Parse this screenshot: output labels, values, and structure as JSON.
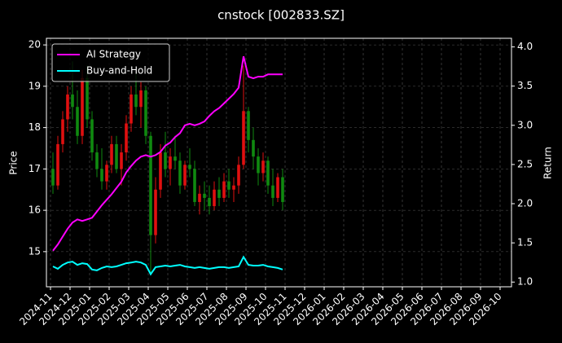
{
  "chart_data": {
    "type": "candlestick",
    "title": "cnstock [002833.SZ]",
    "ylabel": "Price",
    "y2label": "Return",
    "x": [
      "2024-11",
      "2024-11",
      "2024-11",
      "2024-11",
      "2024-12",
      "2024-12",
      "2024-12",
      "2024-12",
      "2025-01",
      "2025-01",
      "2025-01",
      "2025-01",
      "2025-02",
      "2025-02",
      "2025-02",
      "2025-02",
      "2025-03",
      "2025-03",
      "2025-03",
      "2025-03",
      "2025-04",
      "2025-04",
      "2025-04",
      "2025-04",
      "2025-05",
      "2025-05",
      "2025-05",
      "2025-05",
      "2025-06",
      "2025-06",
      "2025-06",
      "2025-06",
      "2025-07",
      "2025-07",
      "2025-07",
      "2025-07",
      "2025-08",
      "2025-08",
      "2025-08",
      "2025-08",
      "2025-09",
      "2025-09",
      "2025-09",
      "2025-09",
      "2025-10",
      "2025-10",
      "2025-10",
      "2025-10"
    ],
    "open": [
      17.0,
      16.6,
      17.6,
      18.2,
      18.8,
      18.5,
      17.8,
      19.2,
      18.2,
      17.4,
      17.0,
      16.7,
      17.1,
      17.6,
      17.0,
      17.4,
      18.1,
      18.8,
      18.5,
      18.9,
      17.8,
      15.4,
      16.5,
      17.4,
      17.0,
      17.3,
      17.2,
      16.6,
      17.1,
      17.0,
      16.2,
      16.4,
      16.3,
      16.1,
      16.5,
      16.3,
      16.7,
      16.5,
      16.6,
      17.1,
      18.4,
      17.7,
      17.3,
      16.9,
      17.2,
      16.6,
      16.3,
      16.8
    ],
    "high": [
      17.4,
      17.8,
      18.4,
      19.0,
      19.6,
      18.9,
      19.4,
      19.5,
      18.4,
      17.6,
      17.5,
      17.2,
      17.8,
      17.8,
      17.6,
      18.3,
      19.0,
      19.3,
      19.1,
      19.0,
      17.9,
      16.8,
      17.6,
      17.9,
      17.5,
      17.8,
      17.4,
      17.2,
      17.5,
      17.2,
      16.6,
      16.7,
      16.6,
      16.7,
      16.8,
      16.9,
      17.0,
      16.8,
      17.3,
      19.5,
      18.5,
      18.0,
      17.5,
      17.4,
      17.3,
      17.0,
      16.9,
      17.0
    ],
    "low": [
      16.4,
      16.5,
      17.4,
      17.9,
      18.2,
      17.6,
      17.6,
      18.0,
      17.2,
      16.8,
      16.5,
      16.5,
      16.9,
      16.9,
      16.6,
      17.2,
      17.9,
      18.3,
      18.0,
      17.6,
      14.5,
      15.2,
      16.3,
      16.8,
      16.6,
      17.0,
      16.4,
      16.5,
      16.8,
      16.1,
      15.9,
      16.0,
      15.9,
      16.0,
      16.1,
      16.2,
      16.3,
      16.2,
      16.4,
      17.0,
      17.4,
      17.0,
      16.6,
      16.7,
      16.4,
      16.1,
      16.2,
      16.0
    ],
    "close": [
      16.6,
      17.6,
      18.2,
      18.8,
      18.5,
      17.8,
      19.2,
      18.2,
      17.4,
      17.0,
      16.7,
      17.1,
      17.6,
      17.0,
      17.4,
      18.1,
      18.8,
      18.5,
      18.9,
      17.8,
      15.4,
      16.5,
      17.4,
      17.0,
      17.3,
      17.2,
      16.6,
      17.1,
      17.0,
      16.2,
      16.4,
      16.3,
      16.1,
      16.5,
      16.3,
      16.7,
      16.5,
      16.6,
      17.1,
      18.4,
      17.7,
      17.3,
      16.9,
      17.2,
      16.6,
      16.3,
      16.8,
      16.2
    ],
    "up_color": "#e01010",
    "down_color": "#108a10",
    "series": [
      {
        "name": "AI Strategy",
        "color": "#ff00ff",
        "axis": "y2",
        "values": [
          1.4,
          1.48,
          1.58,
          1.68,
          1.76,
          1.8,
          1.78,
          1.8,
          1.82,
          1.9,
          1.98,
          2.05,
          2.12,
          2.2,
          2.28,
          2.4,
          2.48,
          2.55,
          2.6,
          2.62,
          2.6,
          2.62,
          2.66,
          2.74,
          2.78,
          2.85,
          2.9,
          3.0,
          3.02,
          3.0,
          3.02,
          3.05,
          3.12,
          3.18,
          3.22,
          3.28,
          3.34,
          3.4,
          3.48,
          3.88,
          3.62,
          3.6,
          3.62,
          3.62,
          3.65,
          3.65,
          3.65,
          3.65
        ]
      },
      {
        "name": "Buy-and-Hold",
        "color": "#00ffff",
        "axis": "y2",
        "values": [
          1.2,
          1.17,
          1.22,
          1.25,
          1.26,
          1.22,
          1.24,
          1.23,
          1.16,
          1.15,
          1.18,
          1.2,
          1.19,
          1.2,
          1.22,
          1.24,
          1.25,
          1.26,
          1.25,
          1.22,
          1.1,
          1.19,
          1.2,
          1.21,
          1.2,
          1.21,
          1.22,
          1.2,
          1.19,
          1.18,
          1.19,
          1.18,
          1.17,
          1.18,
          1.19,
          1.19,
          1.18,
          1.19,
          1.2,
          1.32,
          1.22,
          1.21,
          1.21,
          1.22,
          1.2,
          1.19,
          1.18,
          1.16
        ]
      }
    ],
    "xticks": [
      "2024-11",
      "2024-12",
      "2025-01",
      "2025-02",
      "2025-03",
      "2025-04",
      "2025-05",
      "2025-06",
      "2025-07",
      "2025-08",
      "2025-09",
      "2025-10",
      "2025-11",
      "2025-12",
      "2026-01",
      "2026-02",
      "2026-03",
      "2026-04",
      "2026-05",
      "2026-06",
      "2026-07",
      "2026-08",
      "2026-09",
      "2026-10"
    ],
    "ylim": [
      14.15,
      20.16
    ],
    "yticks": [
      15,
      16,
      17,
      18,
      19,
      20
    ],
    "y2lim": [
      0.94,
      4.11
    ],
    "y2ticks": [
      {
        "value": 1.0,
        "label": "1.0"
      },
      1.5,
      {
        "value": 2.0,
        "label": "2.0"
      },
      2.5,
      {
        "value": 3.0,
        "label": "3.0"
      },
      3.5,
      {
        "value": 4.0,
        "label": "4.0"
      }
    ],
    "grid": true,
    "legend": "upper-left"
  }
}
